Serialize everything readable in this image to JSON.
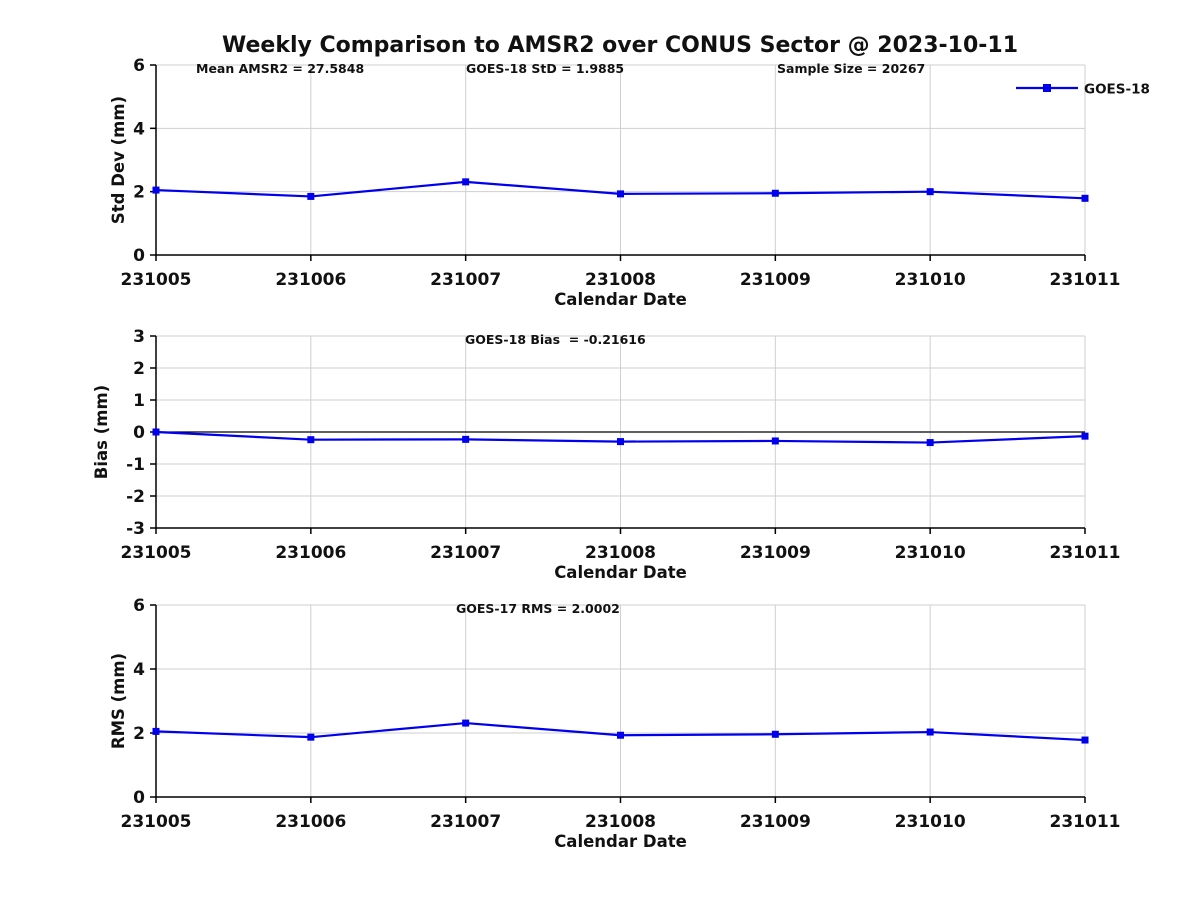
{
  "title": "Weekly Comparison to AMSR2 over CONUS Sector @ 2023-10-11",
  "colors": {
    "series": "#0000ee",
    "grid": "#cfcfcf",
    "axis": "#000000",
    "text": "#111111"
  },
  "legend": {
    "label": "GOES-18",
    "position": "top-right-outside"
  },
  "chart_data": [
    {
      "type": "line",
      "name": "std-dev",
      "annotations": [
        "Mean AMSR2 = 27.5848",
        "GOES-18 StD = 1.9885",
        "Sample Size = 20267"
      ],
      "xlabel": "Calendar Date",
      "ylabel": "Std Dev (mm)",
      "categories": [
        "231005",
        "231006",
        "231007",
        "231008",
        "231009",
        "231010",
        "231011"
      ],
      "ylim": [
        0,
        6
      ],
      "yticks": [
        0,
        2,
        4,
        6
      ],
      "grid": true,
      "zero_line": false,
      "show_legend": true,
      "series": [
        {
          "name": "GOES-18",
          "marker": "square",
          "values": [
            2.05,
            1.85,
            2.31,
            1.93,
            1.95,
            2.0,
            1.79
          ]
        }
      ]
    },
    {
      "type": "line",
      "name": "bias",
      "annotations": [
        "GOES-18 Bias  = -0.21616"
      ],
      "xlabel": "Calendar Date",
      "ylabel": "Bias (mm)",
      "categories": [
        "231005",
        "231006",
        "231007",
        "231008",
        "231009",
        "231010",
        "231011"
      ],
      "ylim": [
        -3,
        3
      ],
      "yticks": [
        -3,
        -2,
        -1,
        0,
        1,
        2,
        3
      ],
      "grid": true,
      "zero_line": true,
      "show_legend": false,
      "series": [
        {
          "name": "GOES-18",
          "marker": "square",
          "values": [
            0.0,
            -0.24,
            -0.23,
            -0.3,
            -0.28,
            -0.33,
            -0.13
          ]
        }
      ]
    },
    {
      "type": "line",
      "name": "rms",
      "annotations": [
        "GOES-17 RMS = 2.0002"
      ],
      "xlabel": "Calendar Date",
      "ylabel": "RMS (mm)",
      "categories": [
        "231005",
        "231006",
        "231007",
        "231008",
        "231009",
        "231010",
        "231011"
      ],
      "ylim": [
        0,
        6
      ],
      "yticks": [
        0,
        2,
        4,
        6
      ],
      "grid": true,
      "zero_line": false,
      "show_legend": false,
      "series": [
        {
          "name": "GOES-18",
          "marker": "square",
          "values": [
            2.05,
            1.87,
            2.31,
            1.93,
            1.96,
            2.03,
            1.78
          ]
        }
      ]
    }
  ]
}
